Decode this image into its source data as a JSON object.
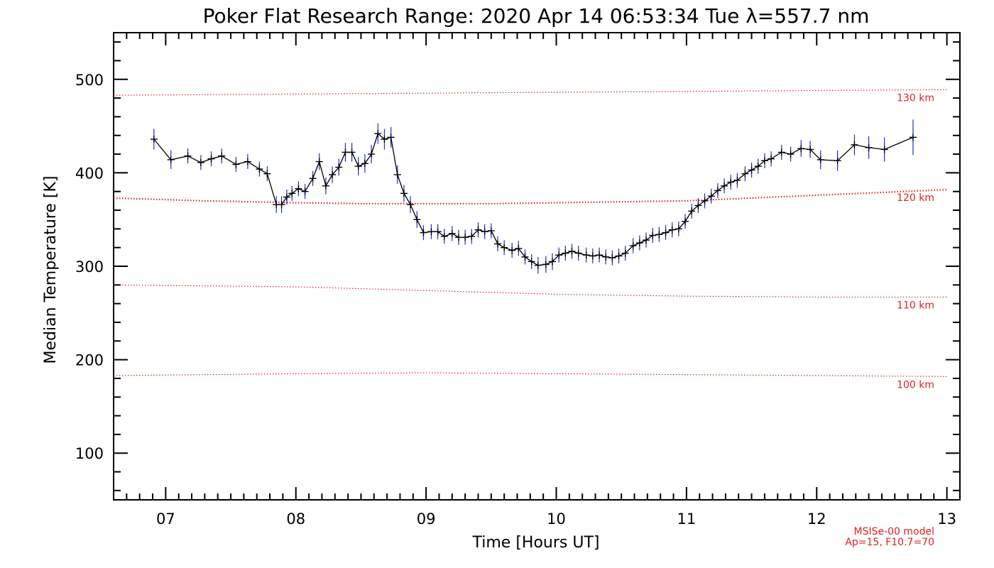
{
  "chart_data": {
    "type": "scatter",
    "title": "Poker Flat Research Range: 2020 Apr 14 06:53:34 Tue λ=557.7 nm",
    "xlabel": "Time [Hours UT]",
    "ylabel": "Median Temperature [K]",
    "xlim": [
      6.6,
      13.1
    ],
    "ylim": [
      50,
      550
    ],
    "x_ticks": [
      7,
      8,
      9,
      10,
      11,
      12,
      13
    ],
    "x_tick_labels": [
      "07",
      "08",
      "09",
      "10",
      "11",
      "12",
      "13"
    ],
    "y_ticks": [
      100,
      200,
      300,
      400,
      500
    ],
    "y_tick_labels": [
      "100",
      "200",
      "300",
      "400",
      "500"
    ],
    "grid": false,
    "series": [
      {
        "color": "#000000",
        "error_color": "#1a2fd6",
        "x": [
          6.91,
          7.04,
          7.17,
          7.27,
          7.35,
          7.43,
          7.54,
          7.63,
          7.72,
          7.78,
          7.85,
          7.89,
          7.93,
          7.97,
          8.02,
          8.07,
          8.13,
          8.18,
          8.23,
          8.28,
          8.33,
          8.38,
          8.43,
          8.48,
          8.53,
          8.58,
          8.63,
          8.68,
          8.73,
          8.78,
          8.83,
          8.88,
          8.93,
          8.98,
          9.04,
          9.09,
          9.14,
          9.2,
          9.25,
          9.3,
          9.35,
          9.4,
          9.45,
          9.5,
          9.55,
          9.6,
          9.66,
          9.71,
          9.76,
          9.81,
          9.86,
          9.92,
          9.97,
          10.02,
          10.07,
          10.12,
          10.17,
          10.23,
          10.28,
          10.33,
          10.38,
          10.43,
          10.48,
          10.53,
          10.59,
          10.64,
          10.69,
          10.74,
          10.79,
          10.84,
          10.89,
          10.94,
          10.99,
          11.04,
          11.09,
          11.14,
          11.19,
          11.24,
          11.29,
          11.34,
          11.39,
          11.45,
          11.5,
          11.55,
          11.6,
          11.65,
          11.73,
          11.8,
          11.88,
          11.95,
          12.03,
          12.16,
          12.29,
          12.4,
          12.52,
          12.74
        ],
        "y": [
          436,
          414,
          418,
          411,
          415,
          418,
          409,
          412,
          404,
          399,
          366,
          366,
          374,
          378,
          383,
          380,
          394,
          412,
          386,
          398,
          406,
          422,
          422,
          407,
          410,
          420,
          442,
          436,
          438,
          398,
          378,
          366,
          350,
          336,
          337,
          337,
          332,
          335,
          331,
          331,
          332,
          339,
          337,
          338,
          324,
          320,
          317,
          319,
          310,
          305,
          301,
          302,
          305,
          312,
          314,
          316,
          314,
          312,
          311,
          312,
          310,
          309,
          311,
          314,
          322,
          325,
          328,
          333,
          334,
          336,
          339,
          340,
          348,
          359,
          365,
          370,
          375,
          381,
          386,
          390,
          392,
          399,
          403,
          407,
          413,
          415,
          422,
          420,
          426,
          425,
          414,
          413,
          430,
          427,
          425,
          438
        ],
        "err": [
          11,
          10,
          8,
          8,
          8,
          8,
          8,
          8,
          8,
          8,
          9,
          9,
          8,
          8,
          8,
          8,
          8,
          9,
          9,
          9,
          9,
          10,
          10,
          10,
          10,
          10,
          11,
          11,
          11,
          10,
          9,
          9,
          9,
          8,
          8,
          8,
          8,
          8,
          8,
          8,
          8,
          8,
          8,
          8,
          8,
          8,
          8,
          8,
          8,
          8,
          9,
          9,
          9,
          8,
          8,
          8,
          8,
          8,
          8,
          8,
          8,
          8,
          8,
          8,
          8,
          8,
          8,
          8,
          8,
          8,
          8,
          8,
          8,
          8,
          8,
          8,
          8,
          8,
          8,
          8,
          8,
          8,
          8,
          8,
          8,
          8,
          8,
          8,
          9,
          9,
          10,
          11,
          11,
          12,
          13,
          19
        ]
      }
    ],
    "model_curves": [
      {
        "label": "130 km",
        "color": "#e02020",
        "x": [
          6.6,
          13.0
        ],
        "y": [
          483,
          489
        ]
      },
      {
        "label": "120 km",
        "color": "#e02020",
        "x": [
          6.6,
          7.3,
          8.0,
          8.5,
          9.0,
          9.5,
          10.0,
          10.5,
          11.0,
          11.5,
          12.0,
          12.5,
          13.0
        ],
        "y": [
          373,
          370,
          368,
          367,
          367,
          367,
          368,
          369,
          370,
          373,
          376,
          379,
          382
        ]
      },
      {
        "label": "110 km",
        "color": "#e02020",
        "x": [
          6.6,
          8.0,
          9.0,
          10.0,
          11.0,
          12.0,
          13.0
        ],
        "y": [
          280,
          278,
          274,
          270,
          268,
          267,
          267
        ]
      },
      {
        "label": "100 km",
        "color": "#e02020",
        "x": [
          6.6,
          8.0,
          9.0,
          10.0,
          11.0,
          12.0,
          13.0
        ],
        "y": [
          183,
          185,
          186,
          185,
          184,
          183,
          182
        ]
      }
    ],
    "annotations": [
      "MSISe-00 model",
      "Ap=15, F10.7=70"
    ]
  }
}
